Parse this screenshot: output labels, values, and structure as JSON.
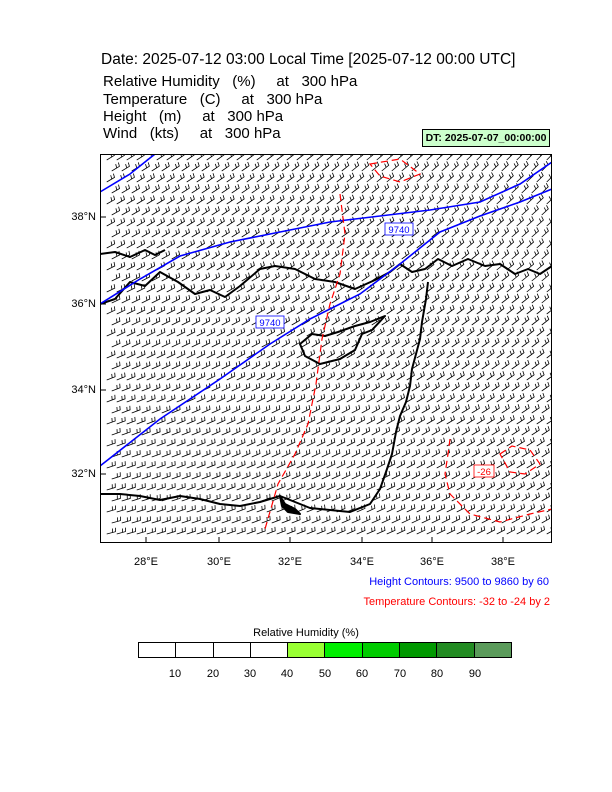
{
  "title": "Date: 2025-07-12  03:00 Local Time [2025-07-12  00:00 UTC]",
  "fields": [
    {
      "name": "Relative Humidity",
      "unit": "(%)",
      "at": "at",
      "level": "300 hPa"
    },
    {
      "name": "Temperature",
      "unit": "(C)",
      "at": "at",
      "level": "300 hPa"
    },
    {
      "name": "Height",
      "unit": "(m)",
      "at": "at",
      "level": "300 hPa"
    },
    {
      "name": "Wind",
      "unit": "(kts)",
      "at": "at",
      "level": "300 hPa"
    }
  ],
  "dt_label": "DT: 2025-07-07_00:00:00",
  "map": {
    "lon_range": [
      26.7,
      39.4
    ],
    "lat_range": [
      30.5,
      39.8
    ],
    "lat_ticks": [
      "38°N",
      "36°N",
      "34°N",
      "32°N"
    ],
    "lon_ticks": [
      "28°E",
      "30°E",
      "32°E",
      "34°E",
      "36°E",
      "38°E"
    ],
    "height_contour_labels": [
      "9740",
      "9740"
    ],
    "temperature_contour_labels": [
      "-26"
    ],
    "colors": {
      "height": "#0000ff",
      "temperature": "#ff0000",
      "coast": "#000000"
    }
  },
  "height_contours": "Height Contours: 9500 to 9860 by 60",
  "temperature_contours": "Temperature Contours: -32 to -24 by 2",
  "colorbar": {
    "title": "Relative Humidity  (%)",
    "labels": [
      "10",
      "20",
      "30",
      "40",
      "50",
      "60",
      "70",
      "80",
      "90"
    ],
    "colors": [
      "#ffffff",
      "#ffffff",
      "#ffffff",
      "#ffffff",
      "#99ff33",
      "#00ee00",
      "#00cc00",
      "#009900",
      "#228b22",
      "#5a9a5a"
    ]
  }
}
